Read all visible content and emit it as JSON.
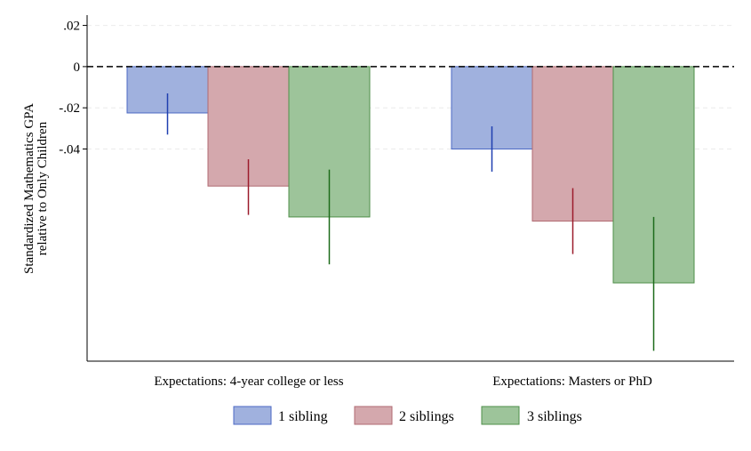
{
  "chart_data": {
    "type": "bar",
    "categories": [
      "Expectations: 4-year college or less",
      "Expectations: Masters or PhD"
    ],
    "series": [
      {
        "name": "1 sibling",
        "values": [
          -0.0225,
          -0.04
        ],
        "ci_low": [
          -0.033,
          -0.051
        ],
        "ci_high": [
          -0.013,
          -0.029
        ],
        "color": "#a0b1de",
        "edge": "#4c69c4",
        "bar_color": "#1f3fb0"
      },
      {
        "name": "2 siblings",
        "values": [
          -0.058,
          -0.075
        ],
        "ci_low": [
          -0.072,
          -0.091
        ],
        "ci_high": [
          -0.045,
          -0.059
        ],
        "color": "#d4a8ad",
        "edge": "#b06a72",
        "bar_color": "#9c1c2c"
      },
      {
        "name": "3 siblings",
        "values": [
          -0.073,
          -0.105
        ],
        "ci_low": [
          -0.096,
          -0.138
        ],
        "ci_high": [
          -0.05,
          -0.073
        ],
        "color": "#9dc49a",
        "edge": "#4f8f4a",
        "bar_color": "#1d6b1a"
      }
    ],
    "ylabel": "Standardized Mathematics GPA relative to Only Children",
    "ylabel_lines": [
      "Standardized Mathematics GPA",
      "relative to Only Children"
    ],
    "ylim": [
      -0.143,
      0.025
    ],
    "yticks": [
      0.02,
      0,
      -0.02,
      -0.04
    ],
    "ytick_labels": [
      ".02",
      "0",
      "-.02",
      "-.04"
    ],
    "grid": true,
    "zero_line": "dashed",
    "legend_position": "bottom"
  }
}
